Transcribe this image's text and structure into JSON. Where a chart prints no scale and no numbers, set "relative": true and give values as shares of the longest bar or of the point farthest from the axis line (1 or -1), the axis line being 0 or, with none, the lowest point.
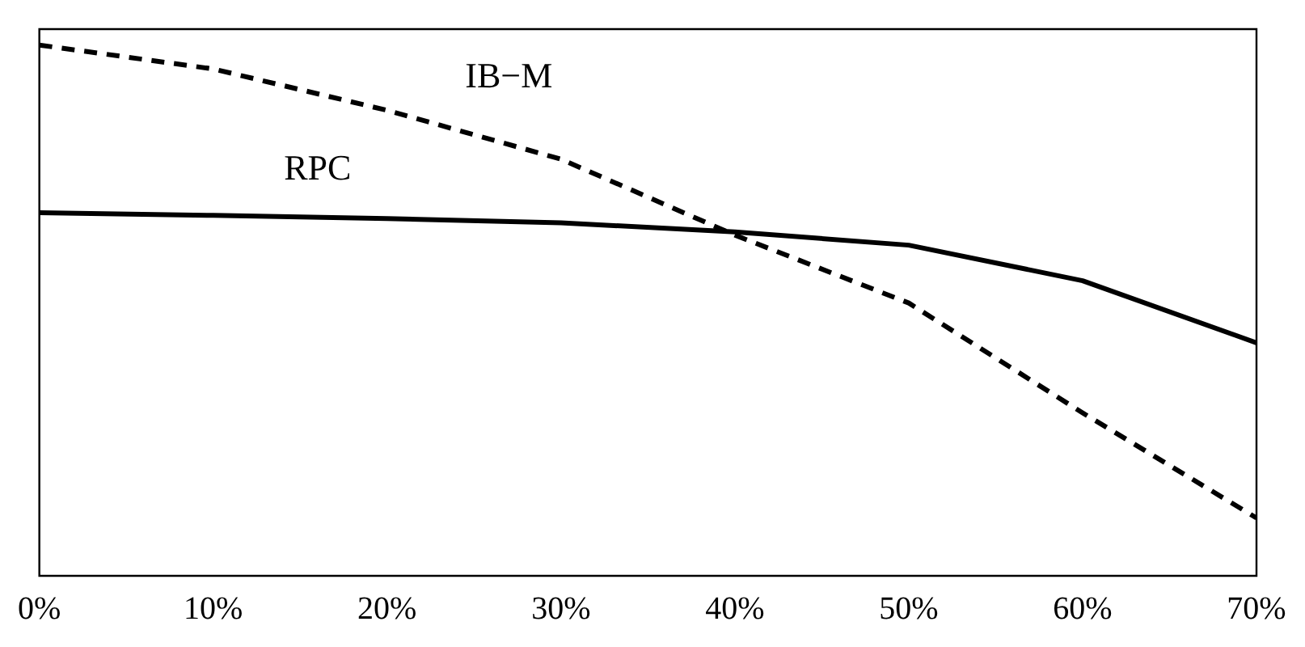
{
  "chart_data": {
    "type": "line",
    "relative": true,
    "x": [
      0,
      10,
      20,
      30,
      40,
      50,
      60,
      70
    ],
    "xlim": [
      0,
      70
    ],
    "xticks": [
      {
        "value": 0,
        "label": "0%"
      },
      {
        "value": 10,
        "label": "10%"
      },
      {
        "value": 20,
        "label": "20%"
      },
      {
        "value": 30,
        "label": "30%"
      },
      {
        "value": 40,
        "label": "40%"
      },
      {
        "value": 50,
        "label": "50%"
      },
      {
        "value": 60,
        "label": "60%"
      },
      {
        "value": 70,
        "label": "70%"
      }
    ],
    "series": [
      {
        "name": "RPC",
        "color": "#000000",
        "line_style": "solid",
        "values": [
          0.684,
          0.679,
          0.673,
          0.665,
          0.648,
          0.623,
          0.556,
          0.439
        ]
      },
      {
        "name": "IB−M",
        "color": "#000000",
        "line_style": "dashed",
        "values": [
          1,
          0.955,
          0.877,
          0.785,
          0.642,
          0.514,
          0.307,
          0.109
        ]
      }
    ],
    "grid": false,
    "legend": false,
    "marker": "none"
  }
}
